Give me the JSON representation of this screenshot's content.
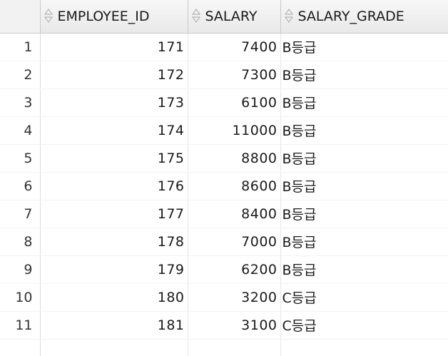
{
  "columns": [
    "EMPLOYEE_ID",
    "SALARY",
    "SALARY_GRADE"
  ],
  "rows": [
    {
      "num": "1",
      "employee_id": "171",
      "salary": "7400",
      "grade": "B등급"
    },
    {
      "num": "2",
      "employee_id": "172",
      "salary": "7300",
      "grade": "B등급"
    },
    {
      "num": "3",
      "employee_id": "173",
      "salary": "6100",
      "grade": "B등급"
    },
    {
      "num": "4",
      "employee_id": "174",
      "salary": "11000",
      "grade": "B등급"
    },
    {
      "num": "5",
      "employee_id": "175",
      "salary": "8800",
      "grade": "B등급"
    },
    {
      "num": "6",
      "employee_id": "176",
      "salary": "8600",
      "grade": "B등급"
    },
    {
      "num": "7",
      "employee_id": "177",
      "salary": "8400",
      "grade": "B등급"
    },
    {
      "num": "8",
      "employee_id": "178",
      "salary": "7000",
      "grade": "B등급"
    },
    {
      "num": "9",
      "employee_id": "179",
      "salary": "6200",
      "grade": "B등급"
    },
    {
      "num": "10",
      "employee_id": "180",
      "salary": "3200",
      "grade": "C등급"
    },
    {
      "num": "11",
      "employee_id": "181",
      "salary": "3100",
      "grade": "C등급"
    }
  ],
  "icons": {
    "sort": "sort-updown-icon"
  },
  "colors": {
    "header_bg": "#ececec",
    "grid_line": "#c9c9c9"
  }
}
